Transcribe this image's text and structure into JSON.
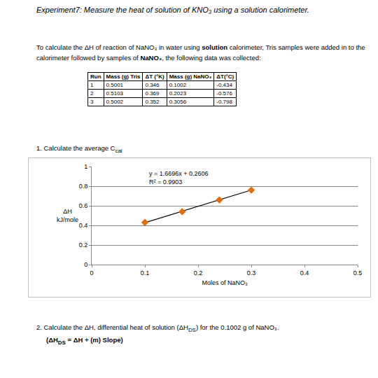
{
  "header": {
    "title": "Experiment7: Measure the heat of solution of KNO₃ using a solution calorimeter."
  },
  "intro": [
    {
      "text": "To calculate the ΔH of reaction of NaNO₃ in water using "
    },
    {
      "text": "solution",
      "bold": true
    },
    {
      "text": " calorimeter, Tris samples were added in to the calorimeter followed by samples of "
    },
    {
      "text": "NaNO₃",
      "bold": true
    },
    {
      "text": ", the following data was collected:"
    }
  ],
  "table": {
    "header": [
      "Run",
      "Mass (g) Tris",
      "ΔT (°K)",
      "Mass (g) NaNO₃",
      "ΔT(°C)"
    ],
    "rows": [
      [
        "1",
        "0.5001",
        "0.346",
        "0.1002",
        "-0.434"
      ],
      [
        "2",
        "0.5103",
        "0.369",
        "0.2023",
        "-0.576"
      ],
      [
        "3",
        "0.5002",
        "0.352",
        "0.3056",
        "-0.798"
      ]
    ]
  },
  "questions": [
    {
      "number": "1.",
      "parts": [
        {
          "text": "Calculate the average C"
        },
        {
          "text": "cal",
          "sub": true
        }
      ]
    },
    {
      "number": "2.",
      "parts": [
        {
          "text": "Calculate the ΔH, differential heat of solution (ΔH"
        },
        {
          "text": "DS",
          "sub": true
        },
        {
          "text": ") for the 0.1002 g of NaNO₃."
        }
      ],
      "formula": [
        {
          "text": "(ΔH"
        },
        {
          "text": "DS",
          "sub": true
        },
        {
          "text": " = ΔH + (m) Slope)"
        }
      ]
    }
  ],
  "chart_data": {
    "type": "scatter",
    "x_label": "Moles of NaNO₃",
    "y_label": [
      "ΔH",
      "kJ/mole"
    ],
    "annotations": [
      "y = 1.6696x + 0.2606",
      "R² = 0.9903"
    ],
    "series": [
      {
        "type": "line",
        "x": [
          0.1,
          0.3
        ],
        "values": [
          0.428,
          0.761
        ],
        "color": "#000000",
        "line_style": "solid"
      },
      {
        "type": "scatter",
        "x": [
          0.1,
          0.17,
          0.24,
          0.3
        ],
        "values": [
          0.43,
          0.54,
          0.66,
          0.76
        ],
        "color": "#e46c0a",
        "marker": "diamond"
      }
    ],
    "xlim": [
      0,
      0.5
    ],
    "xticks": [
      0,
      0.1,
      0.2,
      0.3,
      0.4,
      0.5
    ],
    "ylim": [
      0,
      1
    ],
    "yticks": [
      0,
      0.2,
      0.4,
      0.6,
      0.8,
      1
    ],
    "grid": true
  }
}
